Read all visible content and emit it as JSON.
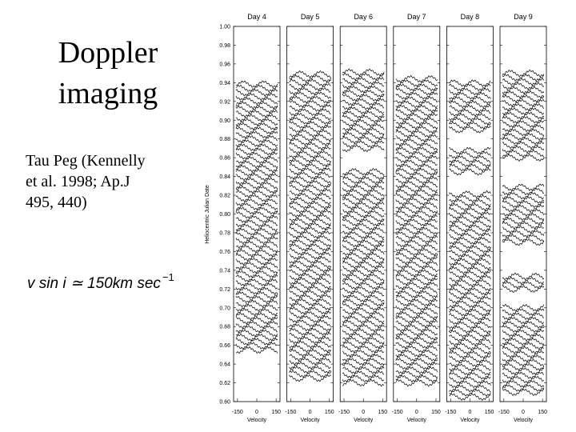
{
  "slide": {
    "title_lines": [
      "Doppler",
      "imaging"
    ],
    "citation_lines": [
      "Tau Peg (Kennelly",
      "et al. 1998; Ap.J",
      "495, 440)"
    ],
    "formula": {
      "text": "v sin i ≃ 150km sec",
      "exponent": "−1"
    }
  },
  "chart_data": {
    "type": "line-profile-panels",
    "y_label": "Heliocentric Julian Date",
    "x_label": "Velocity",
    "ylim": [
      0.6,
      1.0
    ],
    "yticks": [
      {
        "value": 0.6,
        "label": "0.60"
      },
      {
        "value": 0.62,
        "label": "0.62"
      },
      {
        "value": 0.64,
        "label": "0.64"
      },
      {
        "value": 0.66,
        "label": "0.66"
      },
      {
        "value": 0.68,
        "label": "0.68"
      },
      {
        "value": 0.7,
        "label": "0.70"
      },
      {
        "value": 0.72,
        "label": "0.72"
      },
      {
        "value": 0.74,
        "label": "0.74"
      },
      {
        "value": 0.76,
        "label": "0.76"
      },
      {
        "value": 0.78,
        "label": "0.78"
      },
      {
        "value": 0.8,
        "label": "0.80"
      },
      {
        "value": 0.82,
        "label": "0.82"
      },
      {
        "value": 0.84,
        "label": "0.84"
      },
      {
        "value": 0.86,
        "label": "0.86"
      },
      {
        "value": 0.88,
        "label": "0.88"
      },
      {
        "value": 0.9,
        "label": "0.90"
      },
      {
        "value": 0.92,
        "label": "0.92"
      },
      {
        "value": 0.94,
        "label": "0.94"
      },
      {
        "value": 0.96,
        "label": "0.96"
      },
      {
        "value": 0.98,
        "label": "0.98"
      },
      {
        "value": 1.0,
        "label": "1.00"
      }
    ],
    "xlim": [
      -180,
      180
    ],
    "xticks": [
      -150,
      0,
      150
    ],
    "panels": [
      {
        "title": "Day 4",
        "segments": [
          [
            0.655,
            0.94
          ]
        ]
      },
      {
        "title": "Day 5",
        "segments": [
          [
            0.625,
            0.95
          ]
        ]
      },
      {
        "title": "Day 6",
        "segments": [
          [
            0.62,
            0.845
          ],
          [
            0.87,
            0.955
          ]
        ]
      },
      {
        "title": "Day 7",
        "segments": [
          [
            0.62,
            0.945
          ]
        ]
      },
      {
        "title": "Day 8",
        "segments": [
          [
            0.605,
            0.825
          ],
          [
            0.845,
            0.87
          ],
          [
            0.89,
            0.94
          ]
        ]
      },
      {
        "title": "Day 9",
        "segments": [
          [
            0.61,
            0.7
          ],
          [
            0.72,
            0.735
          ],
          [
            0.77,
            0.83
          ],
          [
            0.86,
            0.95
          ]
        ]
      }
    ]
  }
}
